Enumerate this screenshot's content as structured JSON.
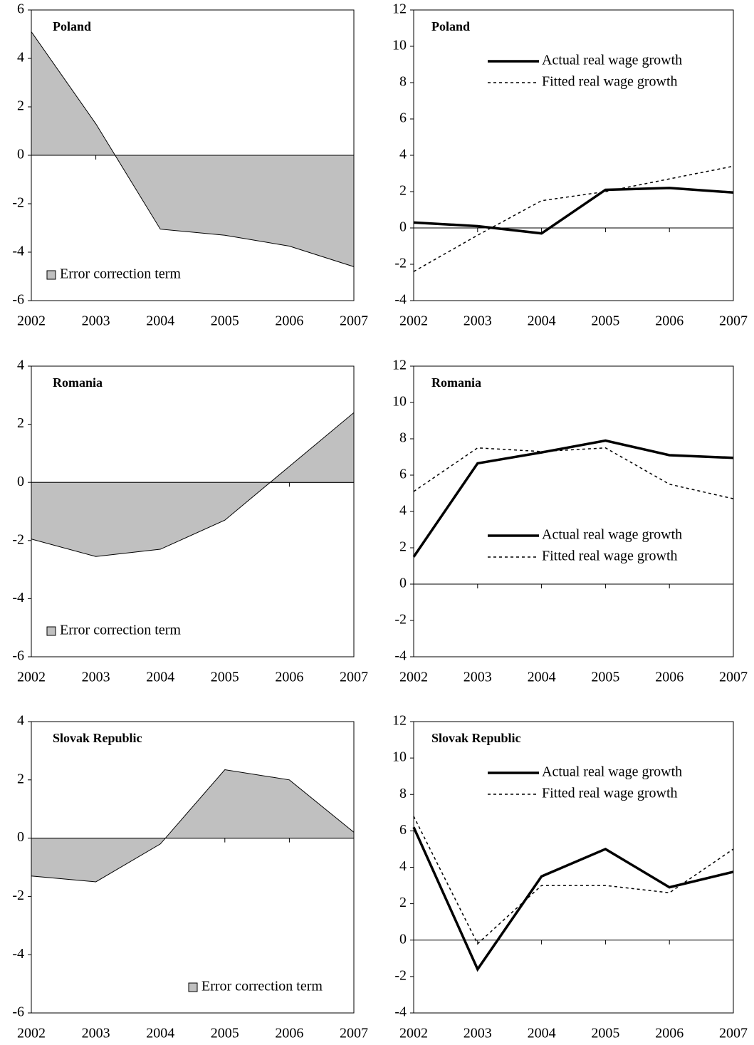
{
  "chart_data": [
    {
      "type": "area",
      "title": "Poland",
      "x": [
        2002,
        2003,
        2004,
        2005,
        2006,
        2007
      ],
      "xlim": [
        2002,
        2007
      ],
      "xticks": [
        2002,
        2003,
        2004,
        2005,
        2006,
        2007
      ],
      "ylim": [
        -6,
        6
      ],
      "yticks": [
        -6,
        -4,
        -2,
        0,
        2,
        4,
        6
      ],
      "legend": "lower left",
      "series": [
        {
          "name": "Error correction term",
          "color": "#c0c0c0",
          "values": [
            5.1,
            1.3,
            -3.05,
            -3.3,
            -3.75,
            -4.6
          ]
        }
      ]
    },
    {
      "type": "line",
      "title": "Poland",
      "x": [
        2002,
        2003,
        2004,
        2005,
        2006,
        2007
      ],
      "xlim": [
        2002,
        2007
      ],
      "xticks": [
        2002,
        2003,
        2004,
        2005,
        2006,
        2007
      ],
      "ylim": [
        -4,
        12
      ],
      "yticks": [
        -4,
        -2,
        0,
        2,
        4,
        6,
        8,
        10,
        12
      ],
      "legend": "upper right",
      "series": [
        {
          "name": "Actual real wage growth",
          "color": "#000000",
          "style": "solid",
          "values": [
            0.3,
            0.1,
            -0.3,
            2.1,
            2.2,
            1.95
          ]
        },
        {
          "name": "Fitted real wage growth",
          "color": "#000000",
          "style": "dotted",
          "values": [
            -2.4,
            -0.4,
            1.5,
            2.0,
            2.7,
            3.4
          ]
        }
      ]
    },
    {
      "type": "area",
      "title": "Romania",
      "x": [
        2002,
        2003,
        2004,
        2005,
        2006,
        2007
      ],
      "xlim": [
        2002,
        2007
      ],
      "xticks": [
        2002,
        2003,
        2004,
        2005,
        2006,
        2007
      ],
      "ylim": [
        -6,
        4
      ],
      "yticks": [
        -6,
        -4,
        -2,
        0,
        2,
        4
      ],
      "legend": "lower left",
      "series": [
        {
          "name": "Error correction term",
          "color": "#c0c0c0",
          "values": [
            -1.95,
            -2.55,
            -2.3,
            -1.3,
            0.55,
            2.4
          ]
        }
      ]
    },
    {
      "type": "line",
      "title": "Romania",
      "x": [
        2002,
        2003,
        2004,
        2005,
        2006,
        2007
      ],
      "xlim": [
        2002,
        2007
      ],
      "xticks": [
        2002,
        2003,
        2004,
        2005,
        2006,
        2007
      ],
      "ylim": [
        -4,
        12
      ],
      "yticks": [
        -4,
        -2,
        0,
        2,
        4,
        6,
        8,
        10,
        12
      ],
      "legend": "lower right",
      "series": [
        {
          "name": "Actual real wage growth",
          "color": "#000000",
          "style": "solid",
          "values": [
            1.5,
            6.65,
            7.25,
            7.9,
            7.1,
            6.95
          ]
        },
        {
          "name": "Fitted real wage growth",
          "color": "#000000",
          "style": "dotted",
          "values": [
            5.1,
            7.5,
            7.3,
            7.5,
            5.5,
            4.7
          ]
        }
      ]
    },
    {
      "type": "area",
      "title": "Slovak Republic",
      "x": [
        2002,
        2003,
        2004,
        2005,
        2006,
        2007
      ],
      "xlim": [
        2002,
        2007
      ],
      "xticks": [
        2002,
        2003,
        2004,
        2005,
        2006,
        2007
      ],
      "ylim": [
        -6,
        4
      ],
      "yticks": [
        -6,
        -4,
        -2,
        0,
        2,
        4
      ],
      "legend": "lower right",
      "series": [
        {
          "name": "Error correction term",
          "color": "#c0c0c0",
          "values": [
            -1.3,
            -1.5,
            -0.2,
            2.35,
            2.0,
            0.2
          ]
        }
      ]
    },
    {
      "type": "line",
      "title": "Slovak Republic",
      "x": [
        2002,
        2003,
        2004,
        2005,
        2006,
        2007
      ],
      "xlim": [
        2002,
        2007
      ],
      "xticks": [
        2002,
        2003,
        2004,
        2005,
        2006,
        2007
      ],
      "ylim": [
        -4,
        12
      ],
      "yticks": [
        -4,
        -2,
        0,
        2,
        4,
        6,
        8,
        10,
        12
      ],
      "legend": "upper right",
      "series": [
        {
          "name": "Actual real wage growth",
          "color": "#000000",
          "style": "solid",
          "values": [
            6.2,
            -1.6,
            3.5,
            5.0,
            2.9,
            3.75
          ]
        },
        {
          "name": "Fitted real wage growth",
          "color": "#000000",
          "style": "dotted",
          "values": [
            6.8,
            -0.2,
            3.0,
            3.0,
            2.6,
            5.0
          ]
        }
      ]
    }
  ]
}
